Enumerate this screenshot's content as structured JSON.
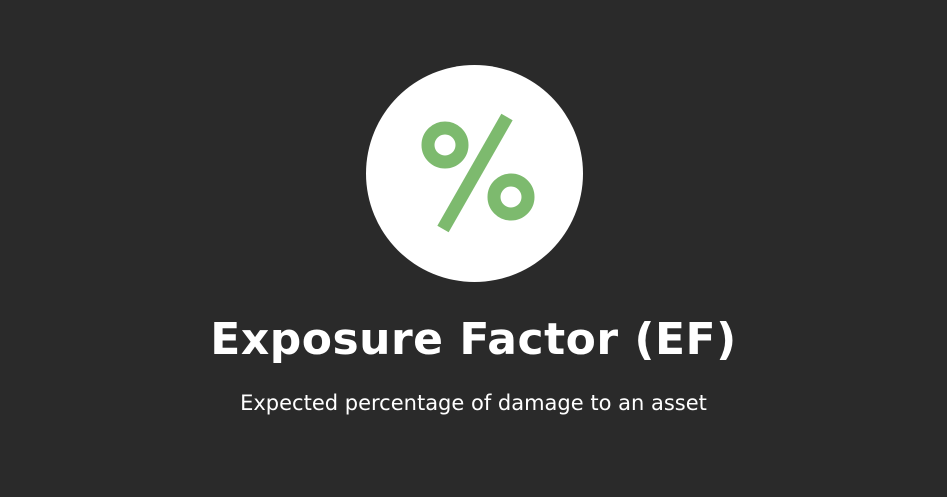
{
  "slide": {
    "icon": "percent-icon",
    "icon_color": "#7dba6e",
    "background_color": "#2a2a2a",
    "title": "Exposure Factor (EF)",
    "subtitle": "Expected percentage of damage to an asset"
  }
}
